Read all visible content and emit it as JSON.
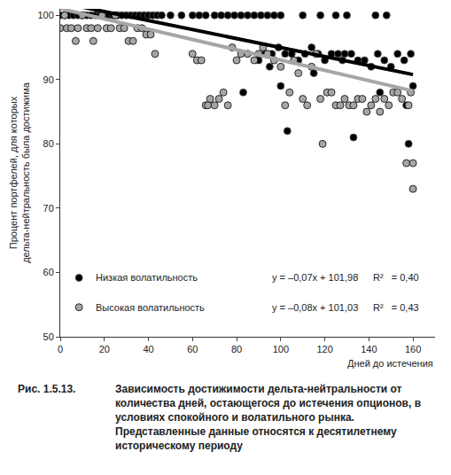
{
  "chart_data": {
    "type": "scatter",
    "x_label": "Дней до истечения",
    "y_label": [
      "Процент портфелей, для которых",
      "дельта-нейтральность была достижима"
    ],
    "xlim": [
      0,
      170
    ],
    "xticks": [
      0,
      20,
      40,
      60,
      80,
      100,
      120,
      140,
      160
    ],
    "ylim": [
      50,
      101
    ],
    "yticks": [
      50,
      60,
      70,
      80,
      90,
      100
    ],
    "grid": false,
    "legend": "lower left",
    "series": [
      {
        "name": "Низкая волатильность",
        "color": "#000000",
        "marker": "circle",
        "x": [
          0,
          2,
          4,
          6,
          8,
          10,
          12,
          14,
          16,
          18,
          20,
          22,
          24,
          26,
          28,
          30,
          32,
          34,
          36,
          38,
          40,
          42,
          44,
          46,
          50,
          55,
          60,
          63,
          66,
          70,
          73,
          76,
          79,
          82,
          85,
          88,
          91,
          94,
          97,
          100,
          110,
          118,
          125,
          130,
          143,
          148,
          90,
          93,
          96,
          99,
          102,
          105,
          108,
          111,
          114,
          117,
          120,
          123,
          126,
          129,
          132,
          135,
          138,
          141,
          144,
          147,
          150,
          153,
          156,
          159,
          83,
          100,
          103,
          133,
          157,
          158,
          160,
          95,
          115,
          128,
          145
        ],
        "values": [
          100,
          100,
          100,
          100,
          100,
          100,
          100,
          100,
          100,
          100,
          100,
          100,
          100,
          100,
          100,
          100,
          100,
          100,
          100,
          100,
          100,
          100,
          100,
          100,
          100,
          100,
          100,
          100,
          100,
          100,
          100,
          100,
          100,
          100,
          100,
          100,
          100,
          100,
          100,
          100,
          100,
          100,
          100,
          100,
          100,
          100,
          93,
          94,
          94,
          95,
          94,
          94,
          93,
          94,
          95,
          94,
          93,
          94,
          94,
          94,
          94,
          93,
          93,
          92,
          94,
          93,
          92,
          94,
          93,
          94,
          88,
          89,
          82,
          81,
          86,
          80,
          89,
          92,
          91,
          93,
          88
        ],
        "trend": {
          "slope": -0.07,
          "intercept": 101.98,
          "equation": "y = –0,07x + 101,98",
          "r2_label": "R²   = 0,40"
        }
      },
      {
        "name": "Высокая волатильность",
        "color": "#a6a6a6",
        "marker": "circle",
        "x": [
          0,
          2,
          3,
          5,
          7,
          8,
          10,
          12,
          14,
          15,
          17,
          19,
          21,
          23,
          25,
          27,
          29,
          31,
          33,
          35,
          37,
          39,
          41,
          43,
          60,
          62,
          64,
          66,
          67,
          68,
          70,
          72,
          74,
          76,
          78,
          80,
          82,
          85,
          88,
          90,
          92,
          94,
          97,
          100,
          102,
          104,
          106,
          108,
          110,
          112,
          114,
          116,
          118,
          119,
          121,
          123,
          125,
          127,
          129,
          131,
          133,
          135,
          137,
          139,
          141,
          143,
          145,
          147,
          149,
          151,
          153,
          155,
          157,
          158,
          159,
          160,
          160
        ],
        "values": [
          98,
          100,
          98,
          98,
          96,
          98,
          100,
          98,
          98,
          96,
          98,
          100,
          98,
          98,
          100,
          98,
          98,
          96,
          96,
          98,
          98,
          97,
          97,
          94,
          94,
          93,
          93,
          86,
          86,
          87,
          86,
          87,
          88,
          86,
          95,
          93,
          94,
          94,
          93,
          94,
          95,
          94,
          93,
          92,
          86,
          88,
          93,
          91,
          87,
          86,
          92,
          94,
          87,
          80,
          88,
          88,
          86,
          86,
          87,
          86,
          86,
          87,
          87,
          85,
          86,
          87,
          85,
          87,
          86,
          88,
          88,
          87,
          77,
          86,
          88,
          77,
          73
        ],
        "trend": {
          "slope": -0.08,
          "intercept": 101.03,
          "equation": "y = –0,08x + 101,03",
          "r2_label": "R²   = 0,43"
        }
      }
    ],
    "caption": {
      "number": "Рис. 1.5.13.",
      "text": "Зависимость достижимости дельта-нейтральности от количества дней, остающегося до истечения опционов, в условиях спокойного и волатильного рынка. Представленные данные относятся к десятилетнему историческому периоду"
    }
  }
}
